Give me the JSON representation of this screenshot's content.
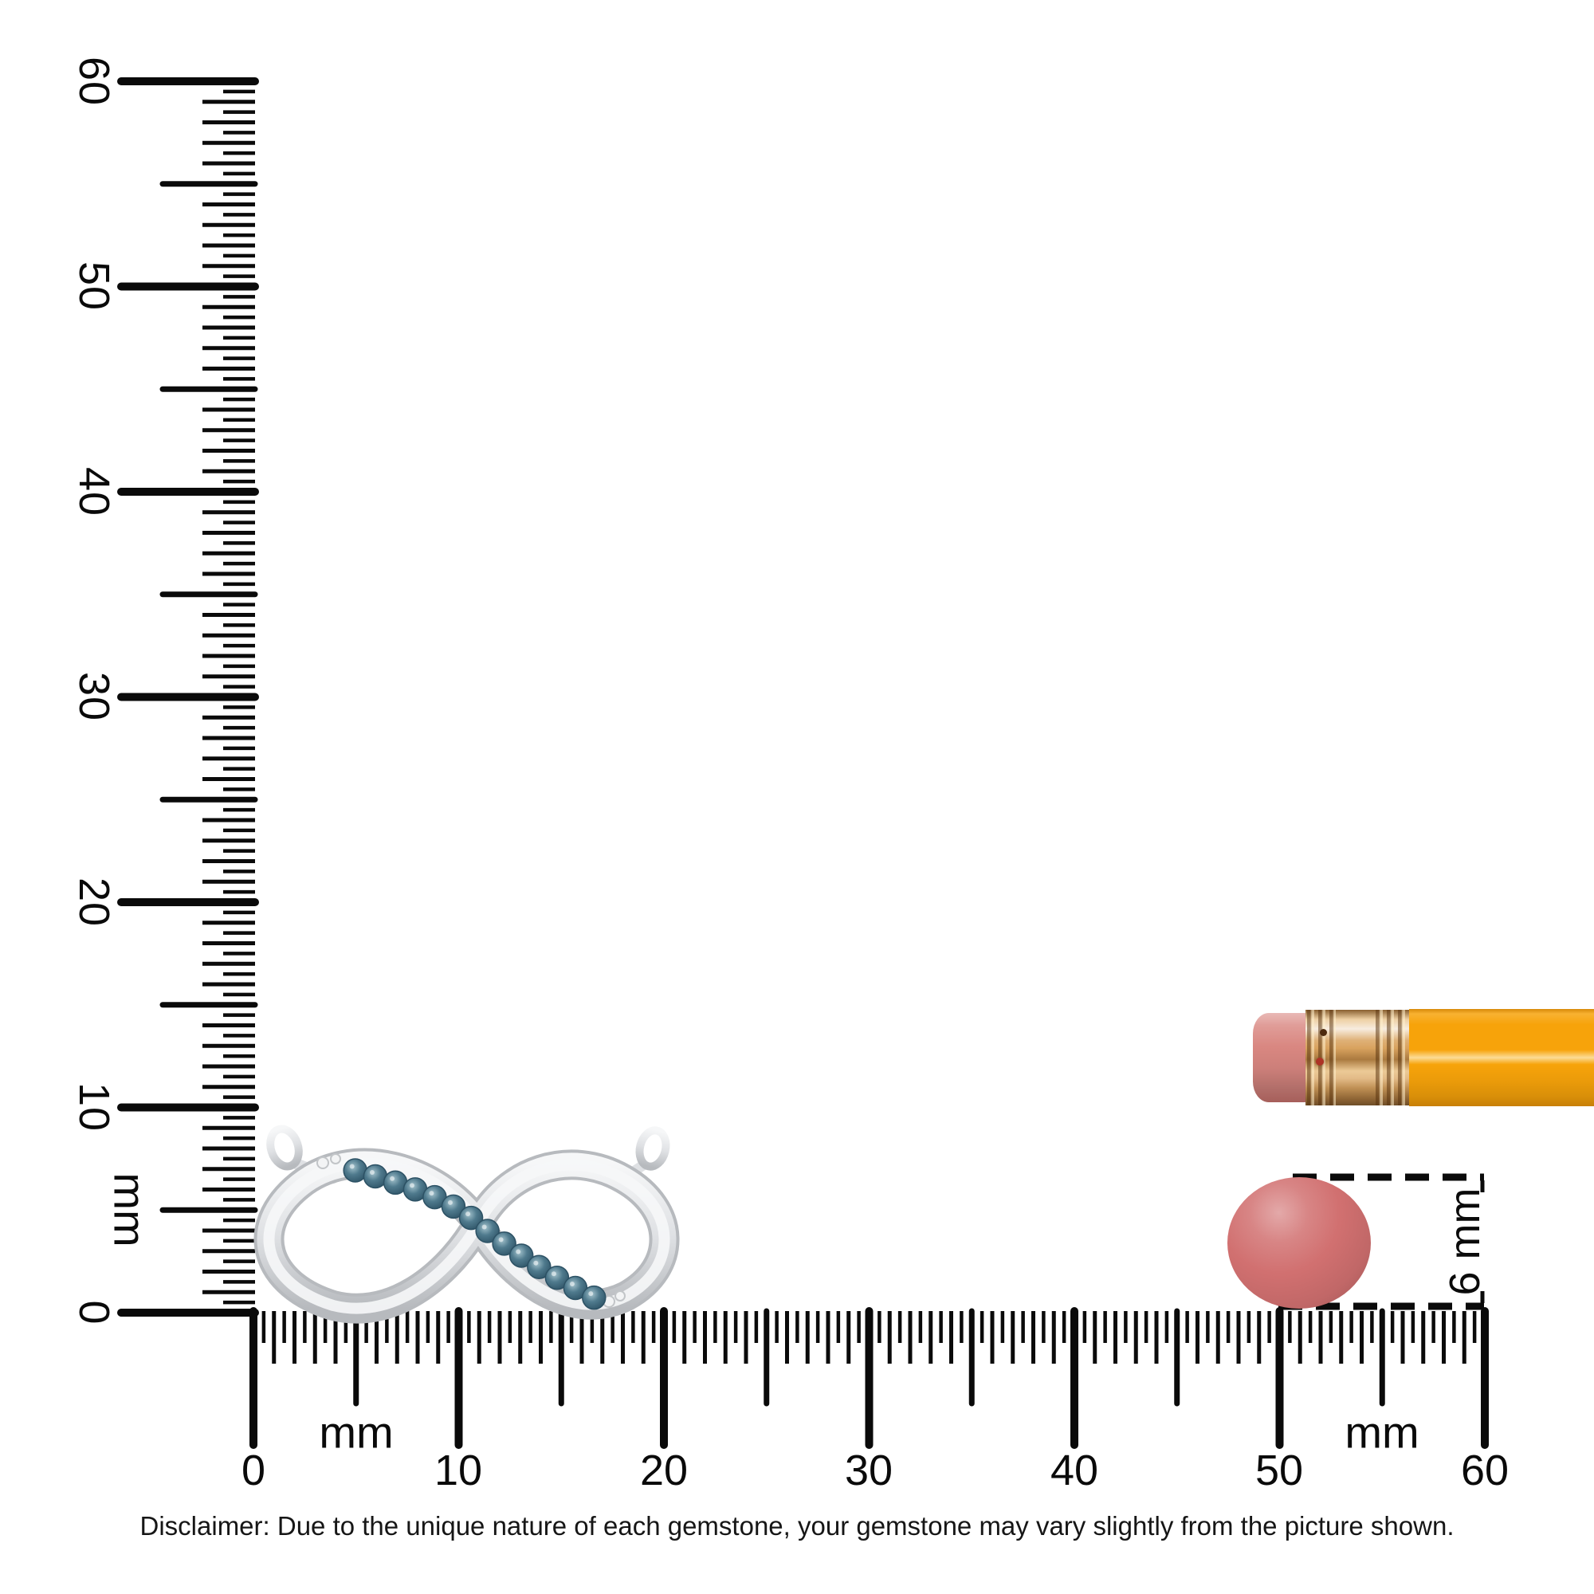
{
  "rulers": {
    "vertical": {
      "unit": "mm",
      "labels": [
        "0",
        "10",
        "20",
        "30",
        "40",
        "50",
        "60"
      ]
    },
    "horizontal": {
      "unit_left": "mm",
      "unit_right": "mm",
      "labels": [
        "0",
        "10",
        "20",
        "30",
        "40",
        "50",
        "60"
      ]
    }
  },
  "dimension_annotation": {
    "label": "6 mm"
  },
  "disclaimer": {
    "text": "Disclaimer: Due to the unique nature of each gemstone, your gemstone may vary slightly from the picture shown."
  },
  "objects": {
    "pendant": {
      "description": "silver infinity pendant with blue gemstones",
      "stone_count": 14,
      "colors": {
        "metal_light": "#f6f7f8",
        "metal_mid": "#dfe1e4",
        "metal_shadow": "#b7babe",
        "stone_light": "#a3c2cc",
        "stone_mid": "#4f7a8d",
        "stone_dark": "#2c5164"
      }
    },
    "pencil": {
      "description": "pencil eraser end for scale",
      "colors": {
        "eraser": "#d98781",
        "ferrule": "#d9a35f",
        "body": "#f7a30a"
      }
    },
    "gem_disc": {
      "description": "6 mm round gemstone blank",
      "colors": {
        "main": "#d17070"
      }
    }
  },
  "tick_color": "#0a0a0a"
}
